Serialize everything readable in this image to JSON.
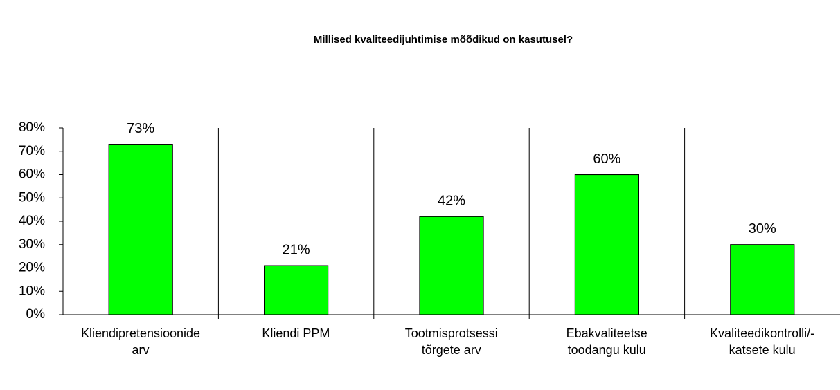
{
  "chart_data": {
    "type": "bar",
    "title": "Millised kvaliteedijuhtimise mõõdikud on kasutusel?",
    "categories": [
      "Kliendipretensioonide\narv",
      "Kliendi PPM",
      "Tootmisprotsessi\ntõrgete arv",
      "Ebakvaliteetse\ntoodangu kulu",
      "Kvaliteedikontrolli/-\nkatsete kulu"
    ],
    "values": [
      73,
      21,
      42,
      60,
      30
    ],
    "value_labels": [
      "73%",
      "21%",
      "42%",
      "60%",
      "30%"
    ],
    "color": "#00ff00",
    "ylim": [
      0,
      80
    ],
    "yticks": [
      {
        "value": 0,
        "label": "0%"
      },
      {
        "value": 10,
        "label": "10%"
      },
      {
        "value": 20,
        "label": "20%"
      },
      {
        "value": 30,
        "label": "30%"
      },
      {
        "value": 40,
        "label": "40%"
      },
      {
        "value": 50,
        "label": "50%"
      },
      {
        "value": 60,
        "label": "60%"
      },
      {
        "value": 70,
        "label": "70%"
      },
      {
        "value": 80,
        "label": "80%"
      }
    ],
    "grid": false
  }
}
